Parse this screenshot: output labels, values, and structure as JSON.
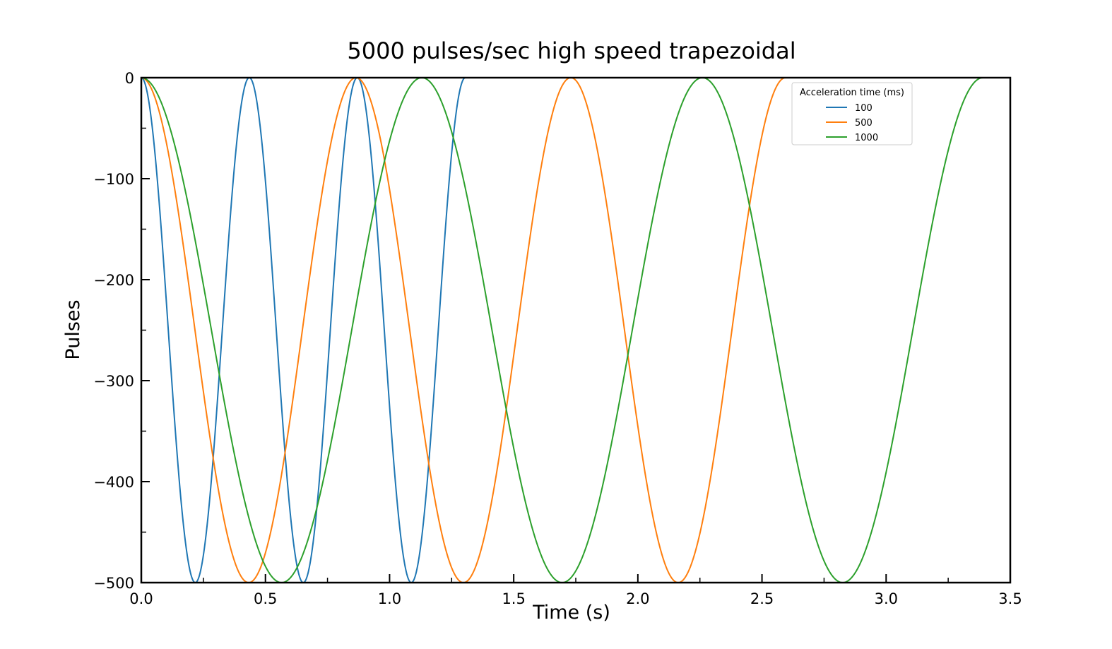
{
  "chart_data": {
    "type": "line",
    "title": "5000 pulses/sec high speed trapezoidal",
    "xlabel": "Time (s)",
    "ylabel": "Pulses",
    "xlim": [
      0.0,
      3.5
    ],
    "ylim": [
      -500,
      0
    ],
    "xticks": [
      0.0,
      0.5,
      1.0,
      1.5,
      2.0,
      2.5,
      3.0,
      3.5
    ],
    "xtick_labels": [
      "0.0",
      "0.5",
      "1.0",
      "1.5",
      "2.0",
      "2.5",
      "3.0",
      "3.5"
    ],
    "yticks": [
      0,
      -100,
      -200,
      -300,
      -400,
      -500
    ],
    "ytick_labels": [
      "0",
      "−100",
      "−200",
      "−300",
      "−400",
      "−500"
    ],
    "grid": false,
    "legend": {
      "title": "Acceleration time (ms)",
      "placement": "upper-right"
    },
    "series": [
      {
        "name": "100",
        "color": "#1f77b4",
        "amplitude": 500,
        "period": 0.435,
        "t_end": 1.305
      },
      {
        "name": "500",
        "color": "#ff7f0e",
        "amplitude": 500,
        "period": 0.865,
        "t_end": 2.595
      },
      {
        "name": "1000",
        "color": "#2ca02c",
        "amplitude": 500,
        "period": 1.13,
        "t_end": 3.39
      }
    ]
  }
}
